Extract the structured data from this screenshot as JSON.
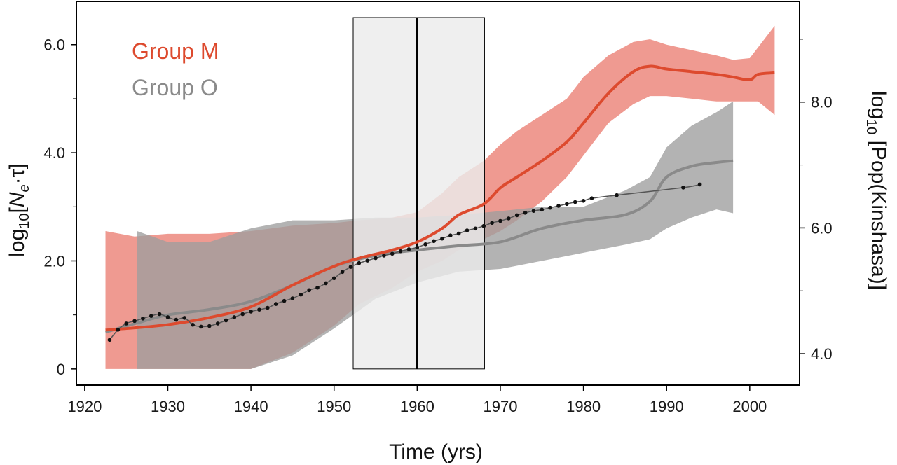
{
  "chart_data": {
    "type": "line",
    "xlabel": "Time (yrs)",
    "ylabel_left_parts": [
      "log",
      "10",
      "[",
      "N",
      "e",
      "·τ]"
    ],
    "ylabel_right_parts": [
      "log",
      "10",
      " [Pop(Kinshasa)]"
    ],
    "xlim": [
      1919,
      2006
    ],
    "ylim_left": [
      -0.3,
      6.8
    ],
    "ylim_right": [
      3.5,
      9.6
    ],
    "x_ticks": [
      1920,
      1930,
      1940,
      1950,
      1960,
      1970,
      1980,
      1990,
      2000
    ],
    "x_tick_labels": [
      "1920",
      "1930",
      "1940",
      "1950",
      "1960",
      "1970",
      "1980",
      "1990",
      "2000"
    ],
    "y_left_ticks": [
      0,
      2,
      4,
      6
    ],
    "y_left_tick_labels": [
      "0",
      "2.0",
      "4.0",
      "6.0"
    ],
    "y_right_ticks": [
      4,
      6,
      8
    ],
    "y_right_tick_labels": [
      "4.0",
      "6.0",
      "8.0"
    ],
    "grid": false,
    "legend_position": "top-left",
    "colors": {
      "group_m_line": "#dd4a2e",
      "group_m_band": "#ef9a91",
      "group_o_line": "#8a8a8a",
      "group_o_band": "#9e9e9e",
      "population_points": "#111111",
      "highlight_box": "#ececec",
      "marker_line": "#000000"
    },
    "highlight_interval": [
      1952.3,
      1968.1
    ],
    "vertical_marker": 1960,
    "series": [
      {
        "name": "Group M",
        "axis": "left",
        "x": [
          1922.5,
          1926,
          1930,
          1935,
          1940,
          1945,
          1950,
          1953,
          1957,
          1960,
          1963,
          1965,
          1968,
          1970,
          1972,
          1975,
          1978,
          1980,
          1983,
          1986,
          1988,
          1990,
          1993,
          1996,
          1998,
          2000,
          2001,
          2003
        ],
        "y": [
          0.72,
          0.76,
          0.82,
          0.95,
          1.15,
          1.55,
          1.9,
          2.05,
          2.2,
          2.35,
          2.6,
          2.85,
          3.05,
          3.35,
          3.55,
          3.85,
          4.2,
          4.55,
          5.1,
          5.5,
          5.6,
          5.55,
          5.5,
          5.45,
          5.4,
          5.35,
          5.45,
          5.48
        ],
        "lower": [
          0,
          0,
          0,
          0,
          0,
          0.3,
          0.8,
          1.2,
          1.5,
          1.8,
          2.0,
          2.2,
          2.4,
          2.55,
          2.75,
          3.1,
          3.55,
          3.95,
          4.55,
          4.9,
          5.05,
          5.05,
          5.0,
          4.95,
          4.95,
          4.95,
          4.95,
          4.7
        ],
        "upper": [
          2.55,
          2.45,
          2.5,
          2.5,
          2.55,
          2.65,
          2.7,
          2.75,
          2.8,
          2.9,
          3.25,
          3.55,
          3.85,
          4.15,
          4.4,
          4.7,
          5.0,
          5.4,
          5.8,
          6.05,
          6.1,
          6.0,
          5.9,
          5.8,
          5.72,
          5.75,
          5.95,
          6.35
        ]
      },
      {
        "name": "Group O",
        "axis": "left",
        "x": [
          1922.5,
          1926.3,
          1930,
          1935,
          1940,
          1945,
          1950,
          1955,
          1960,
          1965,
          1970,
          1975,
          1980,
          1985,
          1988,
          1990,
          1993,
          1996,
          1998
        ],
        "y": [
          0.68,
          0.85,
          1.0,
          1.1,
          1.25,
          1.55,
          1.9,
          2.1,
          2.2,
          2.28,
          2.35,
          2.6,
          2.75,
          2.85,
          3.1,
          3.55,
          3.75,
          3.82,
          3.85
        ],
        "lower": [
          null,
          0,
          0,
          0,
          0,
          0.25,
          0.75,
          1.3,
          1.6,
          1.8,
          1.85,
          2.0,
          2.15,
          2.3,
          2.4,
          2.6,
          2.8,
          2.95,
          2.88
        ],
        "upper": [
          null,
          2.55,
          2.35,
          2.35,
          2.6,
          2.75,
          2.75,
          2.8,
          2.8,
          2.85,
          2.92,
          3.0,
          3.0,
          3.3,
          3.55,
          4.1,
          4.5,
          4.75,
          4.95
        ]
      },
      {
        "name": "",
        "axis": "right",
        "kind": "points",
        "x": [
          1923,
          1924,
          1925,
          1926,
          1927,
          1928,
          1929,
          1930,
          1931,
          1932,
          1933,
          1934,
          1935,
          1936,
          1937,
          1938,
          1939,
          1940,
          1941,
          1942,
          1943,
          1944,
          1945,
          1946,
          1947,
          1948,
          1949,
          1950,
          1951,
          1952,
          1953,
          1954,
          1955,
          1956,
          1957,
          1958,
          1959,
          1960,
          1961,
          1962,
          1963,
          1964,
          1965,
          1966,
          1967,
          1968,
          1969,
          1970,
          1971,
          1972,
          1973,
          1974,
          1975,
          1976,
          1977,
          1978,
          1979,
          1980,
          1981,
          1984,
          1992,
          1994
        ],
        "y": [
          4.22,
          4.38,
          4.48,
          4.52,
          4.56,
          4.6,
          4.63,
          4.58,
          4.54,
          4.57,
          4.46,
          4.43,
          4.44,
          4.48,
          4.53,
          4.58,
          4.63,
          4.67,
          4.7,
          4.73,
          4.79,
          4.84,
          4.88,
          4.94,
          5.01,
          5.05,
          5.12,
          5.2,
          5.3,
          5.38,
          5.44,
          5.48,
          5.52,
          5.56,
          5.59,
          5.63,
          5.66,
          5.69,
          5.74,
          5.79,
          5.83,
          5.88,
          5.91,
          5.96,
          5.99,
          6.03,
          6.08,
          6.11,
          6.15,
          6.2,
          6.24,
          6.27,
          6.29,
          6.32,
          6.35,
          6.38,
          6.41,
          6.43,
          6.47,
          6.52,
          6.64,
          6.69
        ]
      }
    ]
  }
}
